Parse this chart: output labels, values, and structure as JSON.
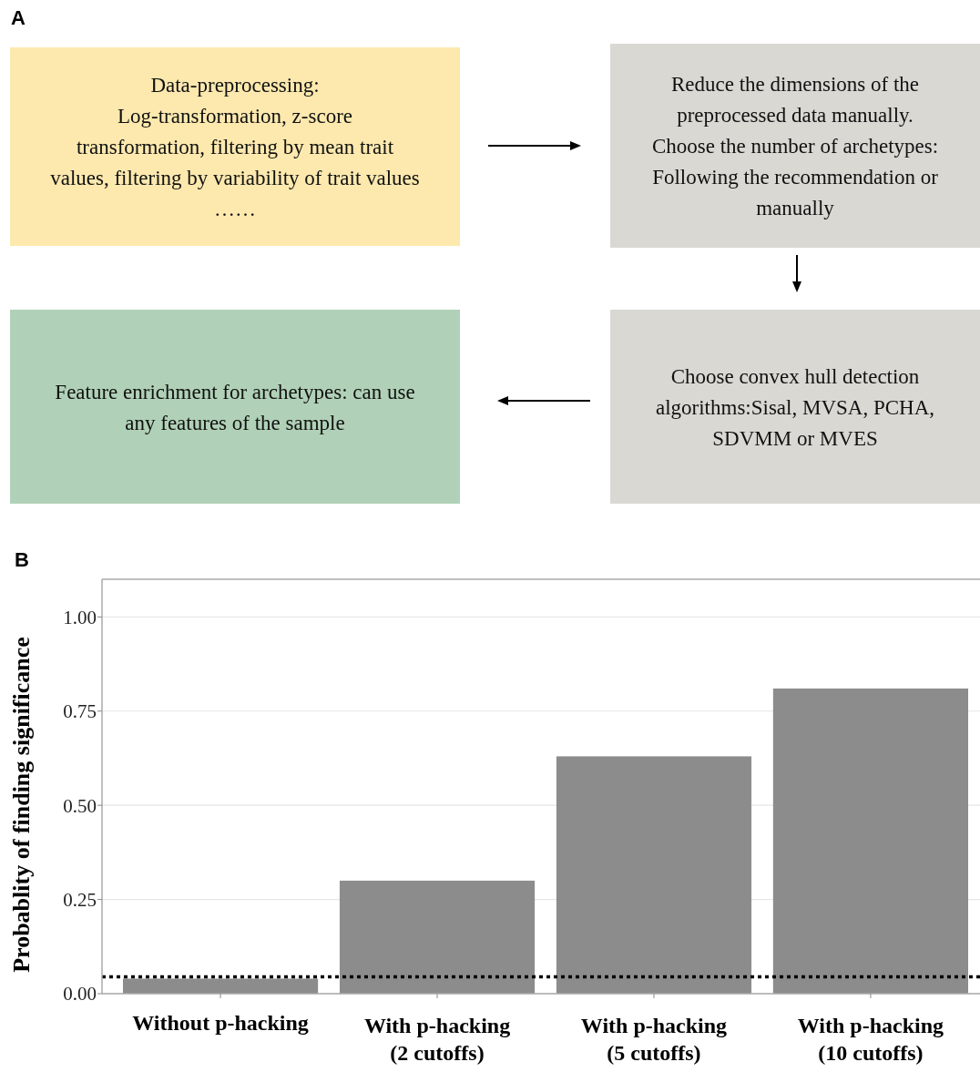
{
  "chart_data": [
    {
      "type": "other",
      "title": "A",
      "colors": [
        "#fde9ae",
        "#d9d8d3",
        "#b0d1b7",
        "#d9d8d3"
      ],
      "annotations": [
        "Data-preprocessing:\nLog-transformation, z-score\ntransformation, filtering by mean trait\nvalues, filtering by variability of trait values\n……",
        "Reduce the dimensions of the\npreprocessed data manually.\nChoose the number of archetypes:\nFollowing the recommendation or\nmanually",
        "Feature enrichment for archetypes: can use\nany features of the sample",
        "Choose convex hull detection\nalgorithms:Sisal, MVSA, PCHA,\nSDVMM or MVES"
      ]
    },
    {
      "type": "bar",
      "title": "B",
      "ylabel": "Probablity of finding significance",
      "categories": [
        "Without p-hacking",
        "With p-hacking\n(2 cutoffs)",
        "With p-hacking\n(5 cutoffs)",
        "With p-hacking\n(10 cutoffs)"
      ],
      "values": [
        0.04,
        0.3,
        0.63,
        0.81
      ],
      "color": "#8c8c8c",
      "ylim": [
        0,
        1.1
      ],
      "yticks": [
        {
          "value": 0,
          "label": "0.00"
        },
        {
          "value": 0.25,
          "label": "0.25"
        },
        {
          "value": 0.5,
          "label": "0.50"
        },
        {
          "value": 0.75,
          "label": "0.75"
        },
        {
          "value": 1,
          "label": "1.00"
        }
      ],
      "grid": "y",
      "ref_lines": [
        {
          "axis": "y",
          "value": 0.045,
          "color": "#000000",
          "line_style": "dotted"
        }
      ]
    }
  ]
}
